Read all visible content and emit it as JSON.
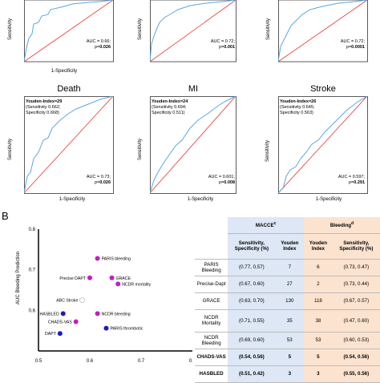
{
  "top_row": [
    {
      "auc_line1": "AUC = 0.66;",
      "auc_line2_prefix": "p=",
      "auc_line2_value": "0.026",
      "ylabel": "Sensitivity",
      "xlabel": "1-Specificity"
    },
    {
      "auc_line1": "AUC = 0.72;",
      "auc_line2_prefix": "p=",
      "auc_line2_value": "0.001",
      "ylabel": "Sensitivity"
    },
    {
      "auc_line1": "AUC = 0.72;",
      "auc_line2_prefix": "p=",
      "auc_line2_value": "0.0001",
      "ylabel": "Sensitivity"
    }
  ],
  "middle_row": [
    {
      "title": "Death",
      "youden_bold": "Youden-Index=29",
      "youden_l2": "(Sensitivity 0.662;",
      "youden_l3": "Specificity 0.668)",
      "auc_line1": "AUC = 0.73;",
      "auc_line2_prefix": "p=",
      "auc_line2_value": "0.026",
      "ylabel": "Sensitivity",
      "xlabel": "1-Specificity"
    },
    {
      "title": "MI",
      "youden_bold": "Youden-Index=24",
      "youden_l2": "(Sensitivity 0.694;",
      "youden_l3": "Specificity 0.511)",
      "auc_line1": "AUC = 0.601;",
      "auc_line2_prefix": "p=",
      "auc_line2_value": "0.008",
      "ylabel": "Sensitivity",
      "xlabel": "1-Specificity"
    },
    {
      "title": "Stroke",
      "youden_bold": "Youden-Index=26",
      "youden_l2": "(Sensitivity 0.645;",
      "youden_l3": "Specificity 0.563)",
      "auc_line1": "AUC = 0.597;",
      "auc_line2_prefix": "p=",
      "auc_line2_value": "0.291",
      "ylabel": "Sensitivity",
      "xlabel": "1-Specificity"
    }
  ],
  "panel_b": {
    "label": "B",
    "ylabel": "AUC Bleeding Prediction",
    "table": {
      "header_maccee": "MACCE",
      "header_maccee_sup": "c",
      "header_bleeding": "Bleeding",
      "header_bleeding_sup": "d",
      "col_sens_spec": "Sensitivity, Specificity (%)",
      "col_youden": "Youden Index",
      "col_youden_b": "Youden Index",
      "col_sens_spec_b": "Sensitivity, Specificity (%)",
      "rows": [
        {
          "name": "PARIS Bleeding",
          "m_ss": "(0.77, 0.57)",
          "m_y": "7",
          "b_y": "6",
          "b_ss": "(0.73, 0.47)",
          "bold": false
        },
        {
          "name": "Precise-Dapt",
          "m_ss": "(0.67, 0.60)",
          "m_y": "27",
          "b_y": "2",
          "b_ss": "(0.73, 0.44)",
          "bold": false
        },
        {
          "name": "GRACE",
          "m_ss": "(0.63, 0.70)",
          "m_y": "130",
          "b_y": "118",
          "b_ss": "(0.67, 0.57)",
          "bold": false
        },
        {
          "name": "NCDR Mortality",
          "m_ss": "(0.71, 0.55)",
          "m_y": "35",
          "b_y": "38",
          "b_ss": "(0.47, 0.60)",
          "bold": false
        },
        {
          "name": "NCDR Bleeding",
          "m_ss": "(0.69, 0.60)",
          "m_y": "53",
          "b_y": "53",
          "b_ss": "(0.60, 0.53)",
          "bold": false
        },
        {
          "name": "CHADS-VAS",
          "m_ss": "(0.54, 0.56)",
          "m_y": "5",
          "b_y": "5",
          "b_ss": "(0.54, 0.56)",
          "bold": true
        },
        {
          "name": "HASBLED",
          "m_ss": "(0.51, 0.42)",
          "m_y": "3",
          "b_y": "3",
          "b_ss": "(0.55, 0.56)",
          "bold": true
        }
      ]
    }
  },
  "chart_data": [
    {
      "type": "scatter",
      "ylabel": "AUC Bleeding Prediction",
      "xlim": [
        0.5,
        0.8
      ],
      "ylim": [
        0.5,
        0.8
      ],
      "xticks": [
        "0.5",
        "0.6",
        "0.7",
        "0.8"
      ],
      "yticks": [
        "0.5",
        "0.6",
        "0.7",
        "0.8"
      ],
      "points": [
        {
          "label": "PARIS bleeding",
          "x": 0.615,
          "y": 0.728,
          "color": "#c020c0"
        },
        {
          "label": "Precise DAPT",
          "x": 0.6,
          "y": 0.68,
          "color": "#c020c0"
        },
        {
          "label": "GRACE",
          "x": 0.643,
          "y": 0.68,
          "color": "#c020c0"
        },
        {
          "label": "NCDR mortality",
          "x": 0.655,
          "y": 0.665,
          "color": "#c020c0"
        },
        {
          "label": "ABC Stroke",
          "x": 0.585,
          "y": 0.625,
          "color": "#ffffff"
        },
        {
          "label": "HASBLED",
          "x": 0.548,
          "y": 0.592,
          "color": "#1a1ac8"
        },
        {
          "label": "NCDR bleeding",
          "x": 0.615,
          "y": 0.592,
          "color": "#c020c0"
        },
        {
          "label": "CHADS-VAS",
          "x": 0.573,
          "y": 0.572,
          "color": "#c020c0"
        },
        {
          "label": "PARIS thrombotic",
          "x": 0.632,
          "y": 0.556,
          "color": "#1a1ac8"
        },
        {
          "label": "DAPT",
          "x": 0.542,
          "y": 0.543,
          "color": "#1a1ac8"
        }
      ]
    }
  ]
}
